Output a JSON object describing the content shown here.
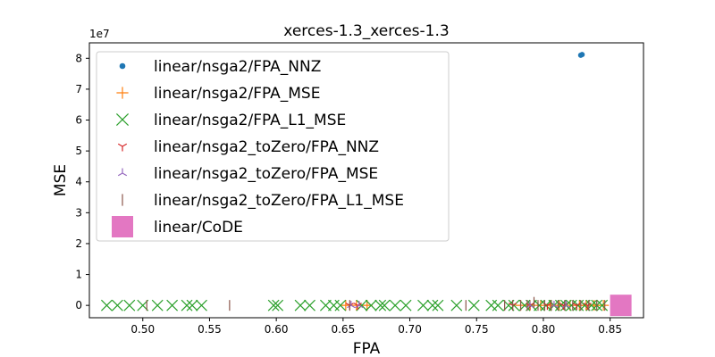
{
  "chart_data": {
    "type": "scatter",
    "title": "xerces-1.3_xerces-1.3",
    "xlabel": "FPA",
    "ylabel": "MSE",
    "y_offset_label": "1e7",
    "xlim": [
      0.46,
      0.875
    ],
    "ylim": [
      -400000,
      8500000
    ],
    "x_ticks": [
      0.5,
      0.55,
      0.6,
      0.65,
      0.7,
      0.75,
      0.8,
      0.85
    ],
    "x_tick_labels": [
      "0.50",
      "0.55",
      "0.60",
      "0.65",
      "0.70",
      "0.75",
      "0.80",
      "0.85"
    ],
    "y_ticks": [
      0,
      1000000,
      2000000,
      3000000,
      4000000,
      5000000,
      6000000,
      7000000,
      8000000
    ],
    "y_tick_labels": [
      "0",
      "1",
      "2",
      "3",
      "4",
      "5",
      "6",
      "7",
      "8"
    ],
    "legend_position": "top-left",
    "series": [
      {
        "name": "linear/nsga2/FPA_NNZ",
        "marker": "circle",
        "color": "#1f77b4",
        "points": [
          [
            0.828,
            8100000
          ],
          [
            0.829,
            8120000
          ]
        ]
      },
      {
        "name": "linear/nsga2/FPA_MSE",
        "marker": "plus",
        "color": "#ff7f0e",
        "points": [
          [
            0.652,
            0
          ],
          [
            0.66,
            0
          ],
          [
            0.668,
            0
          ],
          [
            0.783,
            0
          ],
          [
            0.79,
            0
          ],
          [
            0.798,
            0
          ],
          [
            0.805,
            0
          ],
          [
            0.812,
            0
          ],
          [
            0.82,
            0
          ],
          [
            0.827,
            0
          ],
          [
            0.832,
            0
          ],
          [
            0.838,
            0
          ],
          [
            0.845,
            0
          ]
        ]
      },
      {
        "name": "linear/nsga2/FPA_L1_MSE",
        "marker": "x",
        "color": "#2ca02c",
        "points": [
          [
            0.473,
            0
          ],
          [
            0.481,
            0
          ],
          [
            0.49,
            0
          ],
          [
            0.5,
            0
          ],
          [
            0.511,
            0
          ],
          [
            0.522,
            0
          ],
          [
            0.533,
            0
          ],
          [
            0.537,
            0
          ],
          [
            0.544,
            0
          ],
          [
            0.598,
            0
          ],
          [
            0.601,
            0
          ],
          [
            0.618,
            0
          ],
          [
            0.625,
            0
          ],
          [
            0.637,
            0
          ],
          [
            0.643,
            0
          ],
          [
            0.648,
            0
          ],
          [
            0.664,
            0
          ],
          [
            0.671,
            0
          ],
          [
            0.678,
            0
          ],
          [
            0.681,
            0
          ],
          [
            0.689,
            0
          ],
          [
            0.697,
            0
          ],
          [
            0.71,
            0
          ],
          [
            0.717,
            0
          ],
          [
            0.721,
            0
          ],
          [
            0.735,
            0
          ],
          [
            0.748,
            0
          ],
          [
            0.761,
            0
          ],
          [
            0.766,
            0
          ],
          [
            0.774,
            0
          ],
          [
            0.778,
            0
          ],
          [
            0.786,
            0
          ],
          [
            0.791,
            0
          ],
          [
            0.797,
            0
          ],
          [
            0.802,
            0
          ],
          [
            0.808,
            0
          ],
          [
            0.813,
            0
          ],
          [
            0.817,
            0
          ],
          [
            0.821,
            0
          ],
          [
            0.826,
            0
          ],
          [
            0.831,
            0
          ],
          [
            0.836,
            0
          ],
          [
            0.84,
            0
          ],
          [
            0.844,
            0
          ]
        ]
      },
      {
        "name": "linear/nsga2_toZero/FPA_NNZ",
        "marker": "tri_down",
        "color": "#d62728",
        "points": [
          [
            0.655,
            0
          ],
          [
            0.661,
            0
          ],
          [
            0.777,
            0
          ],
          [
            0.79,
            0
          ],
          [
            0.803,
            0
          ],
          [
            0.815,
            0
          ],
          [
            0.825,
            0
          ],
          [
            0.833,
            0
          ]
        ]
      },
      {
        "name": "linear/nsga2_toZero/FPA_MSE",
        "marker": "tri_up",
        "color": "#9467bd",
        "points": [
          [
            0.656,
            0
          ],
          [
            0.662,
            0
          ],
          [
            0.79,
            0
          ],
          [
            0.808,
            0
          ],
          [
            0.817,
            0
          ]
        ]
      },
      {
        "name": "linear/nsga2_toZero/FPA_L1_MSE",
        "marker": "vline",
        "color": "#8c564b",
        "points": [
          [
            0.503,
            0
          ],
          [
            0.565,
            0
          ],
          [
            0.655,
            0
          ],
          [
            0.742,
            0
          ],
          [
            0.771,
            0
          ],
          [
            0.777,
            0
          ],
          [
            0.783,
            0
          ],
          [
            0.788,
            0
          ],
          [
            0.793,
            100000
          ],
          [
            0.796,
            0
          ],
          [
            0.801,
            0
          ],
          [
            0.806,
            0
          ],
          [
            0.811,
            0
          ],
          [
            0.816,
            0
          ],
          [
            0.822,
            0
          ],
          [
            0.828,
            0
          ],
          [
            0.834,
            0
          ],
          [
            0.84,
            0
          ],
          [
            0.846,
            0
          ]
        ]
      },
      {
        "name": "linear/CoDE",
        "marker": "square",
        "color": "#e377c2",
        "points": [
          [
            0.858,
            0
          ]
        ]
      }
    ]
  }
}
